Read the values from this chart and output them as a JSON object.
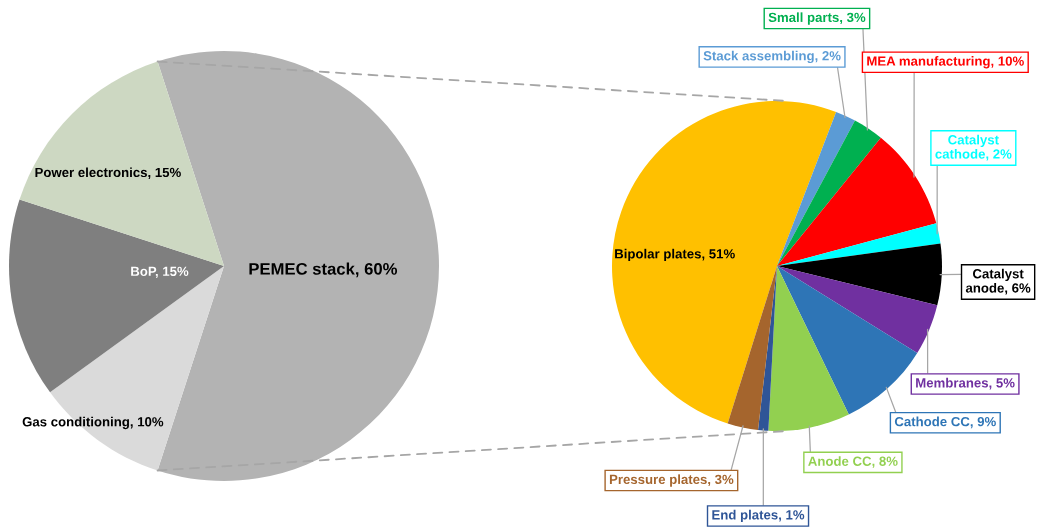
{
  "chart_data": [
    {
      "type": "pie",
      "categories": [
        "PEMEC stack",
        "Gas conditioning",
        "BoP",
        "Power electronics"
      ],
      "values": [
        60,
        10,
        15,
        15
      ],
      "colors": [
        "#b3b3b3",
        "#dadada",
        "#7f7f7f",
        "#cdd8c2"
      ],
      "value_labels": [
        "60%",
        "10%",
        "15%",
        "15%"
      ]
    },
    {
      "type": "pie",
      "categories": [
        "Bipolar plates",
        "Stack assembling",
        "Small parts",
        "MEA manufacturing",
        "Catalyst cathode",
        "Catalyst anode",
        "Membranes",
        "Cathode CC",
        "Anode CC",
        "End plates",
        "Pressure plates"
      ],
      "values": [
        51,
        2,
        3,
        10,
        2,
        6,
        5,
        9,
        8,
        1,
        3
      ],
      "colors": [
        "#ffc000",
        "#5b9bd5",
        "#00b050",
        "#ff0000",
        "#00ffff",
        "#000000",
        "#7030a0",
        "#2e75b6",
        "#92d050",
        "#2f5597",
        "#a5652d"
      ],
      "value_labels": [
        "51%",
        "2%",
        "3%",
        "10%",
        "2%",
        "6%",
        "5%",
        "9%",
        "8%",
        "1%",
        "3%"
      ]
    }
  ]
}
